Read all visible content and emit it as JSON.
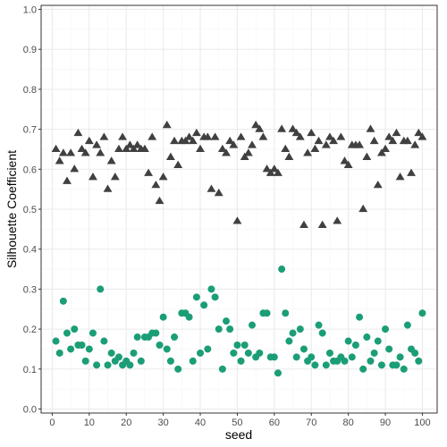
{
  "chart_data": {
    "type": "scatter",
    "xlabel": "seed",
    "ylabel": "Silhouette Coefficient",
    "xlim": [
      -3,
      104
    ],
    "ylim": [
      -0.01,
      1.01
    ],
    "x_ticks": [
      0,
      10,
      20,
      30,
      40,
      50,
      60,
      70,
      80,
      90,
      100
    ],
    "y_ticks": [
      0.0,
      0.1,
      0.2,
      0.3,
      0.4,
      0.5,
      0.6,
      0.7,
      0.8,
      0.9,
      1.0
    ],
    "x_tick_labels": [
      "0",
      "10",
      "20",
      "30",
      "40",
      "50",
      "60",
      "70",
      "80",
      "90",
      "100"
    ],
    "y_tick_labels": [
      "0.0",
      "0.1",
      "0.2",
      "0.3",
      "0.4",
      "0.5",
      "0.6",
      "0.7",
      "0.8",
      "0.9",
      "1.0"
    ],
    "grid": true,
    "legend": "none",
    "colors": {
      "panel_border": "#333333",
      "grid_major": "#ebebeb",
      "grid_minor": "#f5f5f5",
      "triangle_series": "#404040",
      "circle_series": "#1b9e77"
    },
    "series": [
      {
        "marker": "triangle",
        "color": "#404040",
        "x": [
          1,
          2,
          3,
          4,
          5,
          6,
          7,
          8,
          9,
          10,
          11,
          12,
          13,
          14,
          15,
          16,
          17,
          18,
          19,
          20,
          21,
          22,
          23,
          24,
          25,
          26,
          27,
          28,
          29,
          30,
          31,
          32,
          33,
          34,
          35,
          36,
          37,
          38,
          39,
          40,
          41,
          42,
          43,
          44,
          45,
          46,
          47,
          48,
          49,
          50,
          51,
          52,
          53,
          54,
          55,
          56,
          57,
          58,
          59,
          60,
          61,
          62,
          63,
          64,
          65,
          66,
          67,
          68,
          69,
          70,
          71,
          72,
          73,
          74,
          75,
          76,
          77,
          78,
          79,
          80,
          81,
          82,
          83,
          84,
          85,
          86,
          87,
          88,
          89,
          90,
          91,
          92,
          93,
          94,
          95,
          96,
          97,
          98,
          99,
          100
        ],
        "y": [
          0.65,
          0.62,
          0.64,
          0.57,
          0.64,
          0.6,
          0.69,
          0.65,
          0.64,
          0.67,
          0.58,
          0.66,
          0.64,
          0.68,
          0.55,
          0.62,
          0.58,
          0.65,
          0.68,
          0.65,
          0.66,
          0.65,
          0.66,
          0.65,
          0.65,
          0.59,
          0.68,
          0.56,
          0.52,
          0.58,
          0.71,
          0.63,
          0.67,
          0.61,
          0.67,
          0.67,
          0.68,
          0.67,
          0.69,
          0.65,
          0.68,
          0.68,
          0.55,
          0.68,
          0.54,
          0.65,
          0.64,
          0.67,
          0.66,
          0.47,
          0.68,
          0.63,
          0.64,
          0.66,
          0.71,
          0.7,
          0.68,
          0.6,
          0.59,
          0.6,
          0.59,
          0.7,
          0.65,
          0.63,
          0.7,
          0.69,
          0.68,
          0.46,
          0.64,
          0.69,
          0.65,
          0.67,
          0.46,
          0.66,
          0.68,
          0.67,
          0.47,
          0.68,
          0.62,
          0.61,
          0.66,
          0.66,
          0.66,
          0.5,
          0.63,
          0.7,
          0.67,
          0.56,
          0.64,
          0.65,
          0.68,
          0.67,
          0.69,
          0.58,
          0.67,
          0.67,
          0.59,
          0.66,
          0.69,
          0.68
        ]
      },
      {
        "marker": "circle",
        "color": "#1b9e77",
        "x": [
          1,
          2,
          3,
          4,
          5,
          6,
          7,
          8,
          9,
          10,
          11,
          12,
          13,
          14,
          15,
          16,
          17,
          18,
          19,
          20,
          21,
          22,
          23,
          24,
          25,
          26,
          27,
          28,
          29,
          30,
          31,
          32,
          33,
          34,
          35,
          36,
          37,
          38,
          39,
          40,
          41,
          42,
          43,
          44,
          45,
          46,
          47,
          48,
          49,
          50,
          51,
          52,
          53,
          54,
          55,
          56,
          57,
          58,
          59,
          60,
          61,
          62,
          63,
          64,
          65,
          66,
          67,
          68,
          69,
          70,
          71,
          72,
          73,
          74,
          75,
          76,
          77,
          78,
          79,
          80,
          81,
          82,
          83,
          84,
          85,
          86,
          87,
          88,
          89,
          90,
          91,
          92,
          93,
          94,
          95,
          96,
          97,
          98,
          99,
          100
        ],
        "y": [
          0.17,
          0.14,
          0.27,
          0.19,
          0.15,
          0.2,
          0.16,
          0.16,
          0.12,
          0.15,
          0.19,
          0.11,
          0.3,
          0.17,
          0.11,
          0.14,
          0.12,
          0.13,
          0.11,
          0.12,
          0.11,
          0.14,
          0.18,
          0.12,
          0.18,
          0.18,
          0.19,
          0.19,
          0.16,
          0.23,
          0.15,
          0.12,
          0.18,
          0.1,
          0.24,
          0.24,
          0.23,
          0.12,
          0.28,
          0.14,
          0.26,
          0.15,
          0.3,
          0.28,
          0.2,
          0.1,
          0.22,
          0.2,
          0.14,
          0.16,
          0.12,
          0.16,
          0.14,
          0.21,
          0.13,
          0.14,
          0.24,
          0.24,
          0.13,
          0.13,
          0.09,
          0.35,
          0.24,
          0.17,
          0.19,
          0.13,
          0.2,
          0.15,
          0.12,
          0.13,
          0.11,
          0.21,
          0.19,
          0.11,
          0.14,
          0.12,
          0.12,
          0.13,
          0.12,
          0.17,
          0.13,
          0.16,
          0.23,
          0.1,
          0.18,
          0.12,
          0.14,
          0.17,
          0.11,
          0.2,
          0.15,
          0.11,
          0.11,
          0.13,
          0.1,
          0.21,
          0.15,
          0.14,
          0.12,
          0.24
        ]
      }
    ]
  }
}
